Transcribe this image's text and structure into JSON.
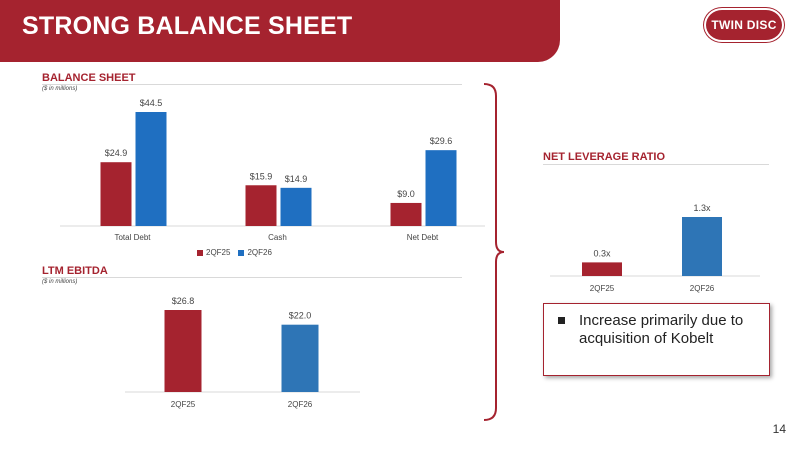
{
  "header": {
    "title": "STRONG BALANCE SHEET",
    "logo_text": "TWIN DISC"
  },
  "balance_sheet": {
    "label": "BALANCE SHEET",
    "units": "($ in millions)"
  },
  "ltm_ebitda": {
    "label": "LTM EBITDA",
    "units": "($ in millions)"
  },
  "net_leverage": {
    "label": "NET LEVERAGE RATIO"
  },
  "callout": {
    "text": "Increase primarily due to acquisition of Kobelt"
  },
  "page_number": "14",
  "colors": {
    "red": "#a5232f",
    "blue": "#1f6fc1",
    "blue_lev": "#2e75b6"
  },
  "chart_data": [
    {
      "type": "bar",
      "title": "BALANCE SHEET",
      "categories": [
        "Total Debt",
        "Cash",
        "Net Debt"
      ],
      "series": [
        {
          "name": "2QF25",
          "values": [
            24.9,
            15.9,
            9.0
          ],
          "labels": [
            "$24.9",
            "$15.9",
            "$9.0"
          ]
        },
        {
          "name": "2QF26",
          "values": [
            44.5,
            14.9,
            29.6
          ],
          "labels": [
            "$44.5",
            "$14.9",
            "$29.6"
          ]
        }
      ],
      "legend": "bottom",
      "ylim": [
        0,
        50
      ]
    },
    {
      "type": "bar",
      "title": "LTM EBITDA",
      "categories": [
        "2QF25",
        "2QF26"
      ],
      "values": [
        26.8,
        22.0
      ],
      "labels": [
        "$26.8",
        "$22.0"
      ],
      "ylim": [
        0,
        30
      ]
    },
    {
      "type": "bar",
      "title": "NET LEVERAGE RATIO",
      "categories": [
        "2QF25",
        "2QF26"
      ],
      "values": [
        0.3,
        1.3
      ],
      "labels": [
        "0.3x",
        "1.3x"
      ],
      "ylim": [
        0,
        1.5
      ]
    }
  ]
}
